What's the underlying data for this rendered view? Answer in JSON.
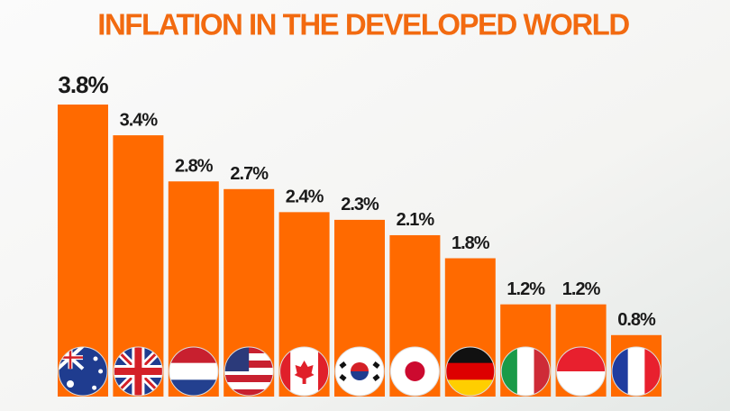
{
  "chart_data": {
    "type": "bar",
    "title": "INFLATION IN THE DEVELOPED WORLD",
    "categories": [
      null,
      null,
      null,
      null,
      null,
      null,
      null,
      null,
      null,
      null,
      null
    ],
    "values": [
      3.8,
      3.4,
      2.8,
      2.7,
      2.4,
      2.3,
      2.1,
      1.8,
      1.2,
      1.2,
      0.8
    ],
    "value_labels": [
      "3.8%",
      "3.4%",
      "2.8%",
      "2.7%",
      "2.4%",
      "2.3%",
      "2.1%",
      "1.8%",
      "1.2%",
      "1.2%",
      "0.8%"
    ],
    "color": "#ff6a00"
  }
}
